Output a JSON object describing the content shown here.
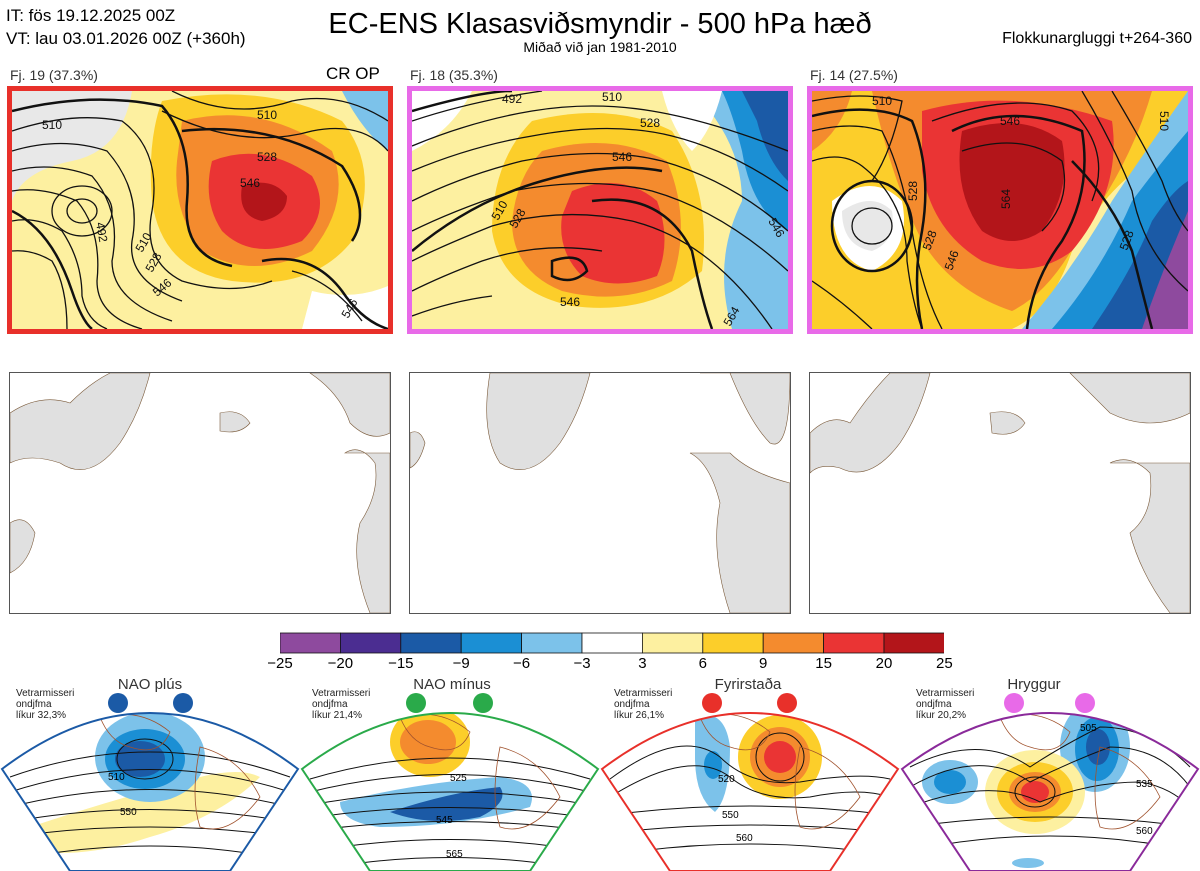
{
  "header": {
    "it_line": "IT: fös 19.12.2025 00Z",
    "vt_line": "VT: lau 03.01.2026 00Z  (+360h)",
    "title": "EC-ENS Klasasviðsmyndir - 500 hPa hæð",
    "subtitle": "Miðað við jan 1981-2010",
    "window": "Flokkunargluggi t+264-360"
  },
  "panels": [
    {
      "label": "Fj. 19 (37.3%)",
      "tag": "CR OP",
      "frame_color": "#e8302a",
      "contours": [
        "510",
        "492",
        "510",
        "528",
        "546",
        "510",
        "528",
        "546",
        "546"
      ]
    },
    {
      "label": "Fj. 18 (35.3%)",
      "tag": "",
      "frame_color": "#e86ae8",
      "contours": [
        "492",
        "510",
        "528",
        "546",
        "510",
        "528",
        "546",
        "546",
        "564"
      ]
    },
    {
      "label": "Fj. 14 (27.5%)",
      "tag": "",
      "frame_color": "#e86ae8",
      "contours": [
        "510",
        "546",
        "564",
        "528",
        "546",
        "528",
        "510",
        "528"
      ]
    }
  ],
  "colorbar": {
    "ticks": [
      "−25",
      "−20",
      "−15",
      "−9",
      "−6",
      "−3",
      "3",
      "6",
      "9",
      "15",
      "20",
      "25"
    ],
    "colors": [
      "#8e4a9e",
      "#4b2d91",
      "#1b5aa6",
      "#1b8fd4",
      "#7cc2ea",
      "#ffffff",
      "#fdf0a0",
      "#fcce2a",
      "#f48b2e",
      "#ea3434",
      "#b3151a"
    ]
  },
  "regimes": [
    {
      "name": "NAO plús",
      "note": [
        "Vetrarmisseri",
        "ondjfma",
        "líkur 32,3%"
      ],
      "dot_color": "#1b5aa6",
      "frame_color": "#1b5aa6",
      "contours": [
        "510",
        "550"
      ]
    },
    {
      "name": "NAO mínus",
      "note": [
        "Vetrarmisseri",
        "ondjfma",
        "líkur 21,4%"
      ],
      "dot_color": "#2aaa4a",
      "frame_color": "#2aaa4a",
      "contours": [
        "525",
        "545",
        "565"
      ]
    },
    {
      "name": "Fyrirstaða",
      "note": [
        "Vetrarmisseri",
        "ondjfma",
        "líkur 26,1%"
      ],
      "dot_color": "#e8302a",
      "frame_color": "#e8302a",
      "contours": [
        "520",
        "550",
        "560"
      ]
    },
    {
      "name": "Hryggur",
      "note": [
        "Vetrarmisseri",
        "ondjfma",
        "líkur 20,2%"
      ],
      "dot_color": "#e86ae8",
      "frame_color": "#8a2a9a",
      "contours": [
        "505",
        "535",
        "560"
      ]
    }
  ]
}
